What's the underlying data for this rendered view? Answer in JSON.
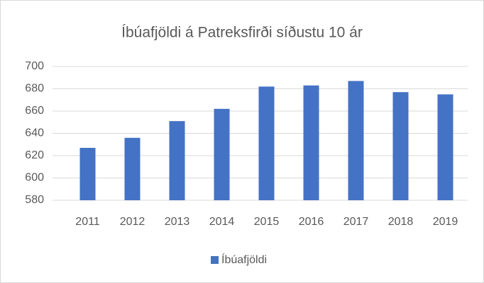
{
  "chart_data": {
    "type": "bar",
    "title": "Íbúafjöldi á Patreksfirði síðustu 10 ár",
    "categories": [
      "2011",
      "2012",
      "2013",
      "2014",
      "2015",
      "2016",
      "2017",
      "2018",
      "2019"
    ],
    "series": [
      {
        "name": "Íbúafjöldi",
        "color": "#4472c4",
        "values": [
          627,
          636,
          651,
          662,
          682,
          683,
          687,
          677,
          675
        ]
      }
    ],
    "ylim": [
      580,
      700
    ],
    "yticks": [
      580,
      600,
      620,
      640,
      660,
      680,
      700
    ],
    "grid": true,
    "legend": "bottom"
  }
}
